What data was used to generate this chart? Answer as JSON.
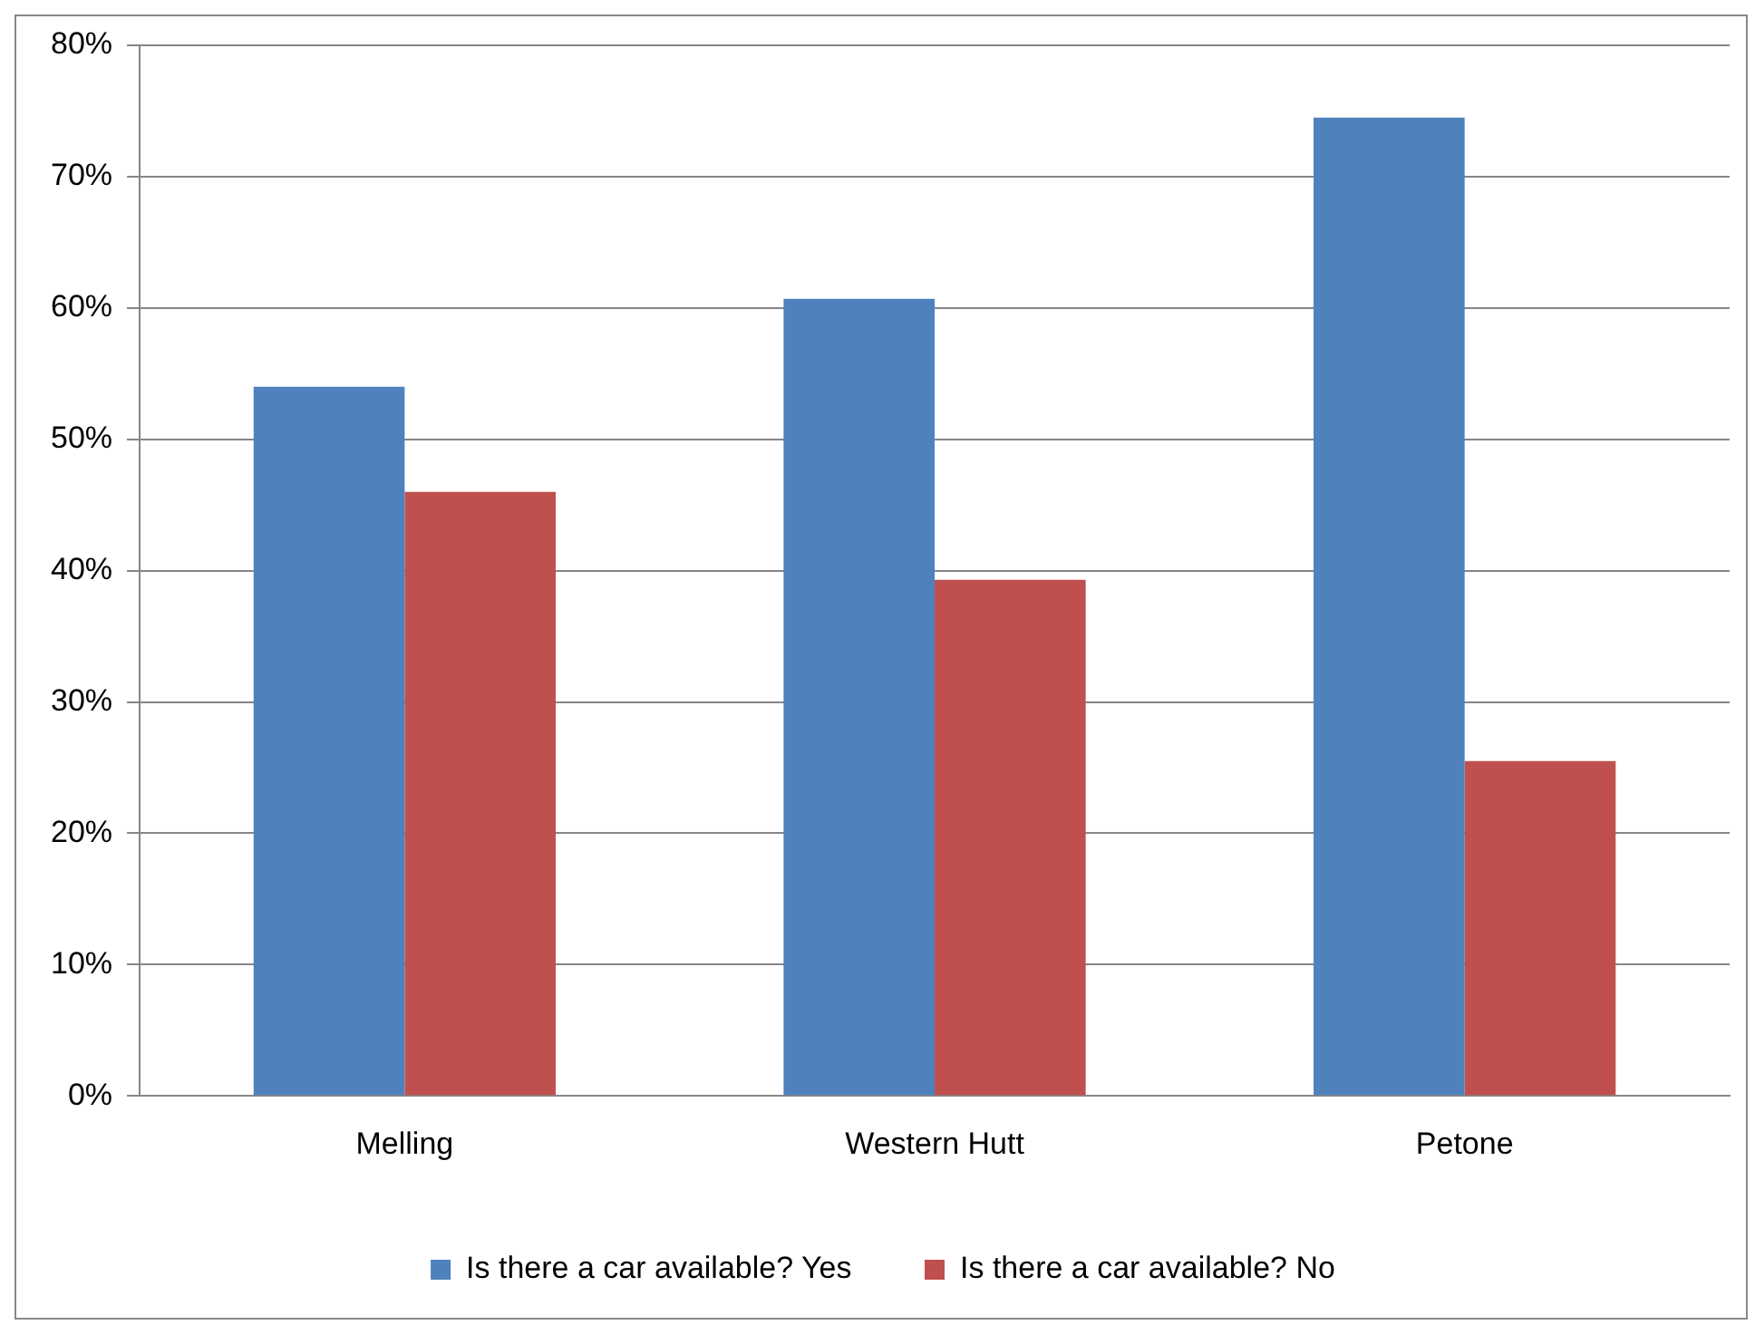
{
  "chart_data": {
    "type": "bar",
    "categories": [
      "Melling",
      "Western Hutt",
      "Petone"
    ],
    "series": [
      {
        "name": "Is there a car available? Yes",
        "color": "#4f81bd",
        "values": [
          54,
          60.7,
          74.5
        ]
      },
      {
        "name": "Is there a car available? No",
        "color": "#c0504d",
        "values": [
          46,
          39.3,
          25.5
        ]
      }
    ],
    "ylim": [
      0,
      80
    ],
    "yticks": [
      {
        "value": 0,
        "label": "0%"
      },
      {
        "value": 10,
        "label": "10%"
      },
      {
        "value": 20,
        "label": "20%"
      },
      {
        "value": 30,
        "label": "30%"
      },
      {
        "value": 40,
        "label": "40%"
      },
      {
        "value": 50,
        "label": "50%"
      },
      {
        "value": 60,
        "label": "60%"
      },
      {
        "value": 70,
        "label": "70%"
      },
      {
        "value": 80,
        "label": "80%"
      }
    ],
    "grid": "y",
    "legend": "bottom"
  }
}
